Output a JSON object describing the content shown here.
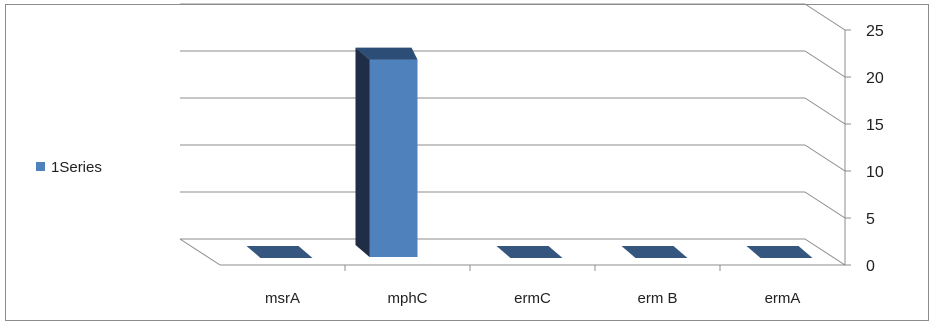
{
  "chart_data": {
    "type": "bar",
    "categories": [
      "msrA",
      "mphC",
      "ermC",
      "erm B",
      "ermA"
    ],
    "series": [
      {
        "name": "1Series",
        "values": [
          0,
          21,
          0,
          0,
          0
        ],
        "color": "#4F81BD"
      }
    ],
    "ylim": [
      0,
      25
    ],
    "yticks": [
      "0",
      "5",
      "10",
      "15",
      "20",
      "25"
    ],
    "grid": true,
    "legend_position": "left",
    "title": "",
    "xlabel": "",
    "ylabel": ""
  }
}
